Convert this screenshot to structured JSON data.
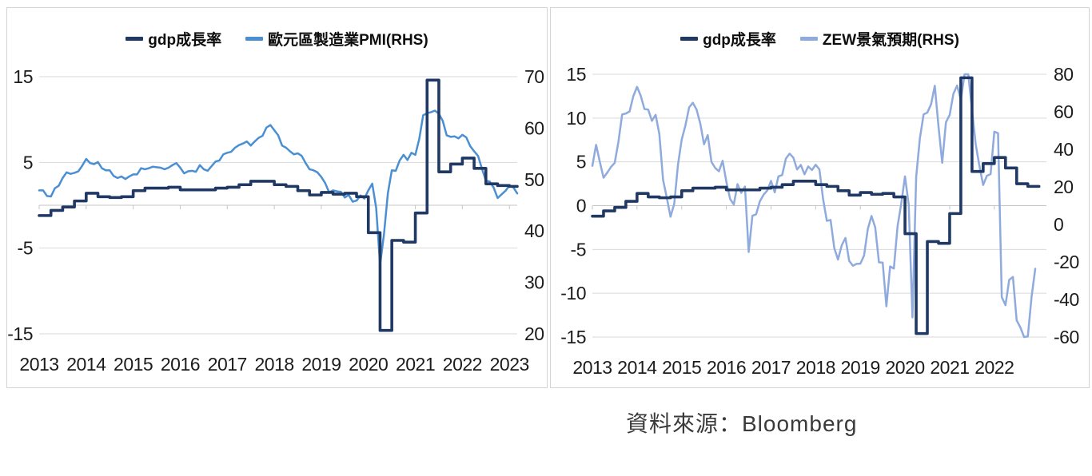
{
  "source_note": "資料來源：Bloomberg",
  "chart_data": [
    {
      "type": "line",
      "title": "",
      "legend_position": "top",
      "x_ticks": [
        "2013",
        "2014",
        "2015",
        "2016",
        "2017",
        "2018",
        "2019",
        "2020",
        "2021",
        "2022",
        "2023"
      ],
      "x_span_months": 123,
      "x_range": {
        "start": "2013-01",
        "end": "2023-03"
      },
      "grid": true,
      "left_axis": {
        "ticks": [
          15,
          5,
          -5,
          -15
        ],
        "range": [
          -15,
          15
        ]
      },
      "right_axis": {
        "ticks": [
          70,
          60,
          50,
          40,
          30,
          20
        ],
        "range": [
          20,
          70
        ]
      },
      "series": [
        {
          "id": "gdp",
          "name": "gdp成長率",
          "axis": "left",
          "freq": "quarterly",
          "color": "#1F3864",
          "values": [
            -1.2,
            -0.6,
            -0.2,
            0.5,
            1.4,
            1.0,
            0.9,
            1.0,
            1.7,
            2.0,
            2.0,
            2.1,
            1.8,
            1.8,
            1.8,
            2.0,
            2.1,
            2.4,
            2.8,
            2.8,
            2.4,
            2.2,
            1.7,
            1.2,
            1.5,
            1.3,
            1.4,
            1.0,
            -3.2,
            -14.6,
            -4.1,
            -4.3,
            -0.9,
            14.6,
            3.9,
            4.8,
            5.5,
            4.3,
            2.5,
            2.3,
            2.2
          ]
        },
        {
          "id": "pmi",
          "name": "歐元區製造業PMI(RHS)",
          "axis": "right",
          "freq": "monthly",
          "color": "#4B8FD3",
          "values": [
            47.9,
            47.9,
            46.8,
            46.7,
            48.3,
            48.8,
            50.3,
            51.4,
            51.1,
            51.3,
            51.6,
            52.7,
            54.0,
            53.2,
            53.0,
            53.4,
            52.2,
            51.8,
            51.8,
            50.7,
            50.3,
            50.6,
            50.1,
            50.6,
            51.0,
            51.0,
            52.2,
            52.0,
            52.2,
            52.5,
            52.4,
            52.3,
            52.0,
            52.3,
            52.8,
            53.2,
            52.3,
            51.2,
            51.6,
            51.7,
            51.5,
            52.8,
            52.0,
            51.7,
            52.6,
            53.5,
            53.7,
            54.9,
            55.2,
            55.4,
            56.2,
            56.7,
            57.0,
            57.4,
            56.6,
            57.4,
            58.1,
            58.5,
            60.1,
            60.6,
            59.6,
            58.6,
            56.6,
            56.2,
            55.5,
            54.9,
            55.1,
            54.6,
            53.2,
            52.0,
            51.8,
            51.4,
            50.5,
            49.3,
            47.5,
            47.9,
            47.7,
            47.6,
            46.5,
            47.0,
            45.7,
            45.9,
            46.9,
            46.3,
            47.9,
            49.2,
            44.5,
            33.4,
            39.4,
            47.4,
            51.8,
            51.7,
            53.7,
            54.8,
            53.8,
            55.2,
            54.8,
            57.9,
            62.5,
            62.9,
            63.1,
            63.4,
            62.8,
            61.4,
            58.6,
            58.3,
            58.4,
            58.0,
            58.7,
            58.2,
            56.5,
            55.5,
            54.6,
            52.1,
            49.8,
            49.6,
            48.4,
            46.4,
            47.1,
            47.8,
            48.8,
            48.5,
            47.3
          ]
        }
      ]
    },
    {
      "type": "line",
      "title": "",
      "legend_position": "top",
      "x_ticks": [
        "2013",
        "2014",
        "2015",
        "2016",
        "2017",
        "2018",
        "2019",
        "2020",
        "2021",
        "2022"
      ],
      "x_span_months": 123,
      "x_range": {
        "start": "2013-01",
        "end": "2022-12"
      },
      "grid": true,
      "left_axis": {
        "ticks": [
          15,
          10,
          5,
          0,
          -5,
          -10,
          -15
        ],
        "range": [
          -15,
          15
        ]
      },
      "right_axis": {
        "ticks": [
          80,
          60,
          40,
          20,
          0,
          -20,
          -40,
          -60
        ],
        "range": [
          -60,
          80
        ]
      },
      "series": [
        {
          "id": "gdp",
          "name": "gdp成長率",
          "axis": "left",
          "freq": "quarterly",
          "color": "#1F3864",
          "values": [
            -1.2,
            -0.6,
            -0.2,
            0.5,
            1.4,
            1.0,
            0.9,
            1.0,
            1.7,
            2.0,
            2.0,
            2.1,
            1.8,
            1.8,
            1.8,
            2.0,
            2.1,
            2.4,
            2.8,
            2.8,
            2.4,
            2.2,
            1.7,
            1.2,
            1.5,
            1.3,
            1.4,
            1.0,
            -3.2,
            -14.6,
            -4.1,
            -4.3,
            -0.9,
            14.6,
            3.9,
            4.8,
            5.5,
            4.3,
            2.5,
            2.2
          ]
        },
        {
          "id": "zew",
          "name": "ZEW景氣預期(RHS)",
          "axis": "right",
          "freq": "monthly",
          "color": "#8FAADC",
          "values": [
            31.2,
            42.4,
            33.4,
            24.9,
            27.6,
            30.6,
            32.8,
            44.0,
            58.6,
            59.1,
            60.2,
            68.3,
            73.3,
            68.5,
            61.5,
            61.2,
            55.2,
            58.4,
            48.1,
            23.7,
            14.2,
            4.1,
            11.0,
            31.8,
            45.2,
            52.7,
            62.4,
            64.8,
            61.2,
            53.7,
            42.7,
            47.6,
            33.3,
            30.1,
            28.3,
            33.9,
            22.7,
            13.6,
            10.6,
            21.5,
            16.8,
            20.2,
            -14.7,
            4.6,
            5.4,
            12.3,
            15.8,
            18.1,
            23.2,
            17.1,
            25.6,
            26.3,
            35.1,
            37.7,
            35.6,
            29.3,
            31.7,
            26.7,
            30.9,
            29.0,
            31.8,
            29.3,
            13.4,
            1.9,
            2.4,
            -12.6,
            -18.7,
            -11.1,
            -7.2,
            -19.4,
            -22.0,
            -21.0,
            -20.9,
            -16.6,
            -2.5,
            4.5,
            -1.6,
            -20.2,
            -20.3,
            -43.6,
            -22.4,
            -23.5,
            -1.0,
            11.2,
            25.6,
            10.4,
            -49.5,
            25.2,
            46.0,
            58.6,
            59.6,
            64.0,
            73.9,
            52.3,
            32.8,
            54.4,
            58.3,
            69.6,
            74.0,
            66.3,
            84.0,
            81.3,
            61.2,
            42.7,
            31.1,
            21.0,
            25.9,
            26.8,
            49.4,
            48.6,
            -38.7,
            -43.0,
            -29.5,
            -28.0,
            -51.1,
            -54.9,
            -60.7,
            -59.7,
            -38.7,
            -23.6
          ]
        }
      ]
    }
  ]
}
